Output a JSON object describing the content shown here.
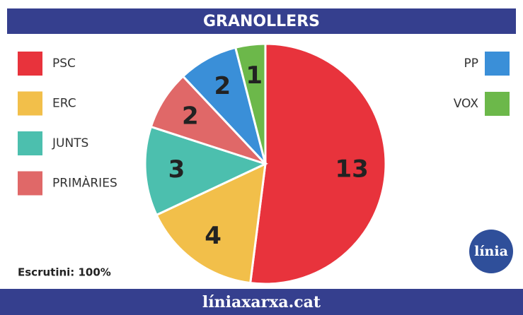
{
  "chart_data": {
    "type": "pie",
    "title": "GRANOLLERS",
    "categories": [
      "PSC",
      "ERC",
      "JUNTS",
      "PRIMÀRIES",
      "PP",
      "VOX"
    ],
    "values": [
      13,
      4,
      3,
      2,
      2,
      1
    ],
    "colors": [
      "#e8333c",
      "#f2bf4a",
      "#4cbfae",
      "#e06868",
      "#3a8fd8",
      "#6cb84a"
    ],
    "note": "Escrutini: 100%",
    "logo": "línia",
    "footer": "líniaxarxa.cat"
  }
}
